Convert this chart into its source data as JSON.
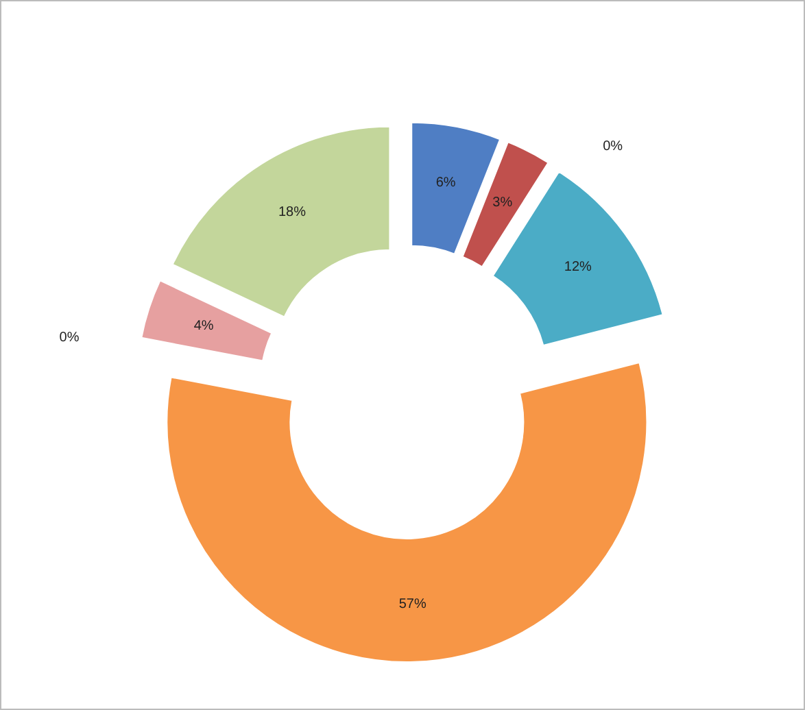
{
  "chart_data": {
    "type": "donut",
    "categories": [
      null,
      null,
      null,
      null,
      null,
      null,
      null,
      null
    ],
    "values": [
      6,
      3,
      0,
      12,
      57,
      0,
      4,
      18
    ],
    "colors": [
      "#4f7ec4",
      "#c0504d",
      "#c0504d",
      "#4bacc6",
      "#f79646",
      "#e6a0a0",
      "#e6a0a0",
      "#c3d69b"
    ],
    "value_labels": [
      "6%",
      "3%",
      "0%",
      "12%",
      "57%",
      "0%",
      "4%",
      "18%"
    ]
  }
}
